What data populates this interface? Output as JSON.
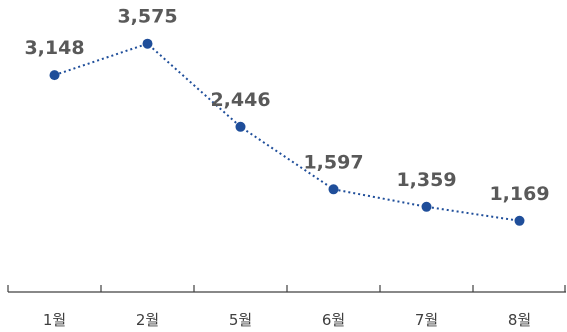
{
  "chart_data": {
    "type": "line",
    "categories": [
      "1월",
      "2월",
      "5월",
      "6월",
      "7월",
      "8월"
    ],
    "values": [
      3148,
      3575,
      2446,
      1597,
      1359,
      1169
    ],
    "value_labels": [
      "3,148",
      "3,575",
      "2,446",
      "1,597",
      "1,359",
      "1,169"
    ],
    "title": "",
    "xlabel": "",
    "ylabel": "",
    "ylim": [
      0,
      4000
    ],
    "grid": false,
    "legend": "none",
    "line_style": "dotted",
    "colors": {
      "series": "#1f4e9a",
      "data_label": "#595959",
      "axis": "#404040"
    }
  }
}
